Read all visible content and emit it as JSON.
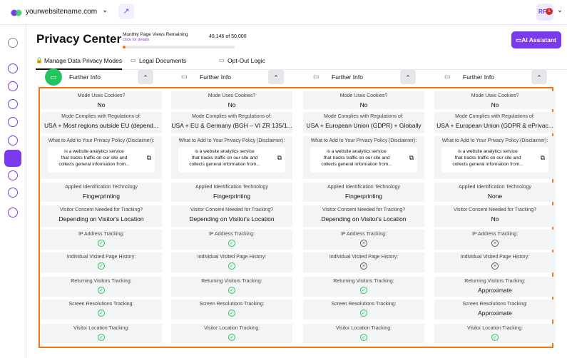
{
  "header": {
    "site": "yourwebsitename.com",
    "avatar": "RF",
    "badge": "1"
  },
  "page": {
    "title": "Privacy Center",
    "views_label": "Monthly Page Views Remaining",
    "views_link": "Click for details",
    "views_count": "49,146 of 50,000",
    "assistant": "AI Assistant"
  },
  "tabs": [
    "Manage Data Privacy Modes",
    "Legal Documents",
    "Opt-Out Logic"
  ],
  "row_labels": [
    "Mode Uses Cookies?",
    "Mode Complies with Regulations of:",
    "What to Add to Your Privacy Policy (Disclaimer):",
    "Applied Identification Technology",
    "Visitor Consent Needed for Tracking?",
    "IP Address Tracking:",
    "Individual Visited Page History:",
    "Returning Visitors Tracking:",
    "Screen Resolutions Tracking:",
    "Visitor Location Tracking:"
  ],
  "columns": [
    {
      "header": "Further Info",
      "active": true,
      "values": [
        "No",
        "USA + Most regions outside EU (depend...",
        [
          "is a website analytics service",
          "that tracks traffic on our site and",
          "collects general information from..."
        ],
        "Fingerprinting",
        "Depending on Visitor's Location",
        true,
        true,
        true,
        true,
        true
      ]
    },
    {
      "header": "Further Info",
      "active": false,
      "values": [
        "No",
        "USA + EU & Germany (BGH – VI ZR 135/1...",
        [
          "is a website analytics service",
          "that tracks traffic on our site and",
          "collects general information from..."
        ],
        "Fingerprinting",
        "Depending on Visitor's Location",
        true,
        true,
        true,
        true,
        true
      ]
    },
    {
      "header": "Further Info",
      "active": false,
      "values": [
        "No",
        "USA + European Union (GDPR) + Globally",
        [
          "is a website analytics service",
          "that tracks traffic on our site and",
          "collects general information from..."
        ],
        "Fingerprinting",
        "Depending on Visitor's Location",
        false,
        false,
        true,
        true,
        true
      ]
    },
    {
      "header": "Further Info",
      "active": false,
      "values": [
        "No",
        "USA + European Union (GDPR & ePrivac...",
        [
          "is a website analytics service",
          "that tracks traffic on our site and",
          "collects general information from..."
        ],
        "None",
        "No",
        false,
        false,
        "Approximate",
        "Approximate",
        true
      ]
    }
  ]
}
